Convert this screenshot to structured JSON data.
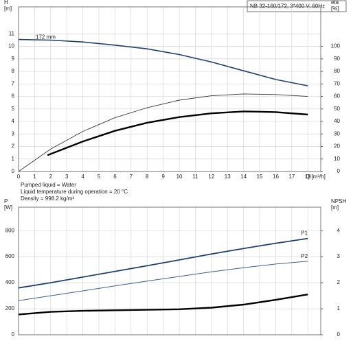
{
  "header": "NB 32-160/172, 3*400 V, 60Hz",
  "notes": [
    "Pumped liquid = Water",
    "Liquid temperature during operation = 20 °C",
    "Density = 998.2 kg/m³"
  ],
  "chart_data": [
    {
      "type": "line",
      "ylabel": [
        "H",
        "[m]"
      ],
      "y2label": [
        "eta",
        "[%]"
      ],
      "xlabel": "Q [m³/h]",
      "xlim": [
        0,
        18.8
      ],
      "xticks": [
        0,
        1,
        2,
        3,
        4,
        5,
        6,
        7,
        8,
        9,
        10,
        11,
        12,
        13,
        14,
        15,
        16,
        17,
        18
      ],
      "ylim": [
        0,
        12.5
      ],
      "yticks": [
        0,
        1,
        2,
        3,
        4,
        5,
        6,
        7,
        8,
        9,
        10,
        11
      ],
      "y2lim": [
        0,
        125
      ],
      "y2ticks": [
        0,
        10,
        20,
        30,
        40,
        50,
        60,
        70,
        80,
        90,
        100
      ],
      "grid": true,
      "series": [
        {
          "name": "172 mm",
          "color": "#1f3f6e",
          "x": [
            0,
            2,
            4,
            6,
            8,
            10,
            12,
            14,
            16,
            18
          ],
          "values": [
            10.55,
            10.5,
            10.35,
            10.1,
            9.8,
            9.35,
            8.75,
            8.05,
            7.35,
            6.85
          ]
        },
        {
          "color": "#333333",
          "axis": "y2",
          "x": [
            0,
            2,
            4,
            6,
            8,
            10,
            12,
            14,
            16,
            18
          ],
          "values": [
            0,
            18,
            32,
            43,
            51,
            57,
            60.5,
            62,
            61.5,
            60
          ]
        },
        {
          "color": "#000000",
          "axis": "y2",
          "x": [
            1.8,
            4,
            6,
            8,
            10,
            12,
            14,
            16,
            18
          ],
          "values": [
            13,
            24,
            32.5,
            39,
            43.5,
            46.5,
            48,
            47.5,
            45.5
          ]
        }
      ]
    },
    {
      "type": "line",
      "ylabel": [
        "P",
        "[W]"
      ],
      "y2label": [
        "NPSH",
        "[m]"
      ],
      "xlim": [
        0,
        18.8
      ],
      "xticks": [
        0,
        1,
        2,
        3,
        4,
        5,
        6,
        7,
        8,
        9,
        10,
        11,
        12,
        13,
        14,
        15,
        16,
        17,
        18
      ],
      "ylim": [
        0,
        980
      ],
      "yticks": [
        0,
        200,
        400,
        600,
        800
      ],
      "y2lim": [
        0,
        4.9
      ],
      "y2ticks": [
        0,
        1,
        2,
        3,
        4
      ],
      "grid": true,
      "series": [
        {
          "name": "P1",
          "color": "#1f3f6e",
          "x": [
            0,
            2,
            4,
            6,
            8,
            10,
            12,
            14,
            16,
            18
          ],
          "values": [
            360,
            400,
            443,
            487,
            530,
            575,
            620,
            663,
            703,
            740
          ]
        },
        {
          "name": "P2",
          "color": "#3a5f8f",
          "x": [
            0,
            2,
            4,
            6,
            8,
            10,
            12,
            14,
            16,
            18
          ],
          "values": [
            262,
            300,
            337,
            375,
            412,
            448,
            483,
            515,
            543,
            565
          ]
        },
        {
          "color": "#000000",
          "axis": "y2",
          "x": [
            0,
            2,
            4,
            6,
            8,
            10,
            12,
            14,
            16,
            18
          ],
          "values": [
            0.78,
            0.88,
            0.92,
            0.94,
            0.96,
            0.98,
            1.04,
            1.16,
            1.34,
            1.55
          ]
        }
      ]
    }
  ]
}
